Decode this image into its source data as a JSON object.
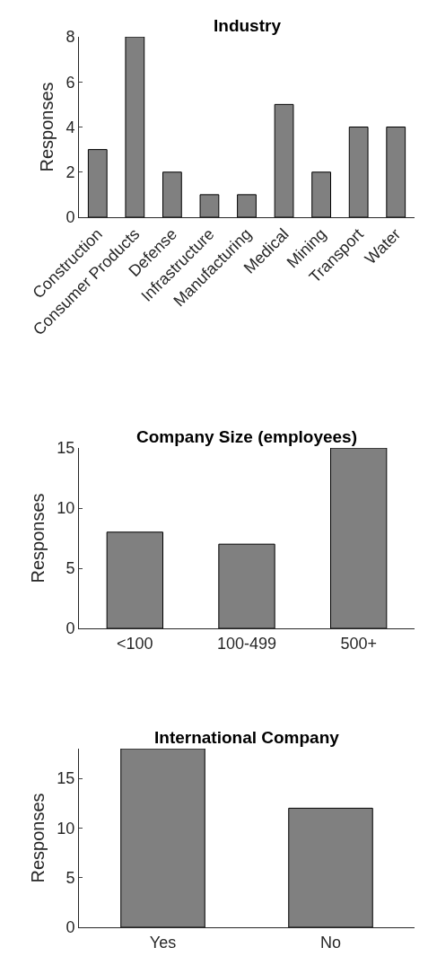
{
  "chart_data": [
    {
      "type": "bar",
      "title": "Industry",
      "ylabel": "Responses",
      "categories": [
        "Construction",
        "Consumer Products",
        "Defense",
        "Infrastructure",
        "Manufacturing",
        "Medical",
        "Mining",
        "Transport",
        "Water"
      ],
      "values": [
        3,
        8,
        2,
        1,
        1,
        5,
        2,
        4,
        4
      ],
      "color": "#808080",
      "ylim": [
        0,
        8
      ],
      "yticks": [
        0,
        2,
        4,
        6,
        8
      ]
    },
    {
      "type": "bar",
      "title": "Company Size (employees)",
      "ylabel": "Responses",
      "categories": [
        "<100",
        "100-499",
        "500+"
      ],
      "values": [
        8,
        7,
        15
      ],
      "color": "#808080",
      "ylim": [
        0,
        15
      ],
      "yticks": [
        0,
        5,
        10,
        15
      ]
    },
    {
      "type": "bar",
      "title": "International Company",
      "ylabel": "Responses",
      "categories": [
        "Yes",
        "No"
      ],
      "values": [
        18,
        12
      ],
      "color": "#808080",
      "ylim": [
        0,
        18
      ],
      "yticks": [
        0,
        5,
        10,
        15
      ]
    }
  ]
}
